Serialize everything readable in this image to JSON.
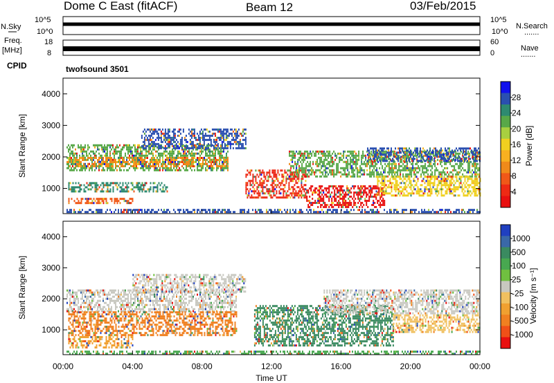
{
  "header": {
    "station": "Dome C East (fitACF)",
    "beam": "Beam 12",
    "date": "03/Feb/2015"
  },
  "status_panels": {
    "nsky_label": "N.Sky",
    "nsky_ticks": [
      "10^5",
      "10^0"
    ],
    "nsearch_label": "N.Search",
    "nsearch_ticks": [
      "10^5",
      "10^0"
    ],
    "freq_label_line1": "Freq.",
    "freq_label_line2": "[MHz]",
    "freq_ticks": [
      "18",
      "8"
    ],
    "nave_label": "Nave",
    "nave_ticks": [
      "60",
      "0"
    ],
    "cpid_label": "CPID",
    "cpid_value": "twofsound 3501",
    "dots": "......."
  },
  "chart_data": [
    {
      "type": "heatmap",
      "name": "power-panel",
      "ylabel": "Slant Range [km]",
      "ylim": [
        200,
        4500
      ],
      "yticks": [
        1000,
        2000,
        3000,
        4000
      ],
      "xlim": [
        0,
        24
      ],
      "colorbar": {
        "label": "Power [dB]",
        "ticks": [
          "28",
          "24",
          "20",
          "16",
          "12",
          "8",
          "4"
        ],
        "colors": [
          "#1010ee",
          "#2a4fb0",
          "#2e8a70",
          "#58a848",
          "#a8d040",
          "#f0d020",
          "#f8b020",
          "#f08a1a",
          "#f05818",
          "#ee2a14",
          "#e81010"
        ]
      },
      "bands": [
        {
          "x0": 0.2,
          "x1": 9.5,
          "y0": 1600,
          "y1": 2400,
          "color": "#58a848"
        },
        {
          "x0": 0.2,
          "x1": 9.5,
          "y0": 1700,
          "y1": 2000,
          "color": "#f08a1a"
        },
        {
          "x0": 0.3,
          "x1": 6.0,
          "y0": 900,
          "y1": 1200,
          "color": "#2e8a70"
        },
        {
          "x0": 0.3,
          "x1": 4.0,
          "y0": 550,
          "y1": 700,
          "color": "#f05818"
        },
        {
          "x0": 0.2,
          "x1": 24.0,
          "y0": 250,
          "y1": 350,
          "color": "#2a4fb0"
        },
        {
          "x0": 4.5,
          "x1": 10.5,
          "y0": 2300,
          "y1": 2900,
          "color": "#2a4fb0"
        },
        {
          "x0": 10.5,
          "x1": 14.0,
          "y0": 700,
          "y1": 1600,
          "color": "#ee2a14"
        },
        {
          "x0": 14.0,
          "x1": 18.5,
          "y0": 400,
          "y1": 1100,
          "color": "#e81010"
        },
        {
          "x0": 13.0,
          "x1": 24.0,
          "y0": 1400,
          "y1": 2200,
          "color": "#58a848"
        },
        {
          "x0": 18.0,
          "x1": 24.0,
          "y0": 800,
          "y1": 1400,
          "color": "#f0d020"
        },
        {
          "x0": 17.5,
          "x1": 24.0,
          "y0": 1900,
          "y1": 2300,
          "color": "#2a4fb0"
        }
      ]
    },
    {
      "type": "heatmap",
      "name": "velocity-panel",
      "ylabel": "Slant Range [km]",
      "ylim": [
        200,
        4500
      ],
      "yticks": [
        1000,
        2000,
        3000,
        4000
      ],
      "xlim": [
        0,
        24
      ],
      "xticks": [
        "00:00",
        "04:00",
        "08:00",
        "12:00",
        "16:00",
        "20:00",
        "00:00"
      ],
      "xlabel": "Time UT",
      "colorbar": {
        "label": "Velocity [m s⁻¹]",
        "ticks": [
          "1000",
          "500",
          "100",
          "25",
          "-25",
          "-100",
          "-500",
          "-1000"
        ],
        "colors": [
          "#2040c0",
          "#3a68a8",
          "#3a8a60",
          "#48a850",
          "#70c040",
          "#c8c8c0",
          "#f0c060",
          "#f0a030",
          "#f08020",
          "#f05018",
          "#e81010"
        ]
      },
      "bands": [
        {
          "x0": 0.2,
          "x1": 10.0,
          "y0": 1600,
          "y1": 2300,
          "color": "#c8c8c0"
        },
        {
          "x0": 0.3,
          "x1": 10.0,
          "y0": 800,
          "y1": 1600,
          "color": "#f08020"
        },
        {
          "x0": 0.3,
          "x1": 4.0,
          "y0": 400,
          "y1": 800,
          "color": "#f0a030"
        },
        {
          "x0": 4.0,
          "x1": 10.5,
          "y0": 2200,
          "y1": 2800,
          "color": "#c8c8c0"
        },
        {
          "x0": 11.0,
          "x1": 19.0,
          "y0": 500,
          "y1": 1800,
          "color": "#3a8a60"
        },
        {
          "x0": 15.0,
          "x1": 24.0,
          "y0": 1500,
          "y1": 2300,
          "color": "#c8c8c0"
        },
        {
          "x0": 19.0,
          "x1": 24.0,
          "y0": 900,
          "y1": 1500,
          "color": "#f0c060"
        },
        {
          "x0": 0.2,
          "x1": 24.0,
          "y0": 250,
          "y1": 330,
          "color": "#48a850"
        }
      ]
    }
  ]
}
